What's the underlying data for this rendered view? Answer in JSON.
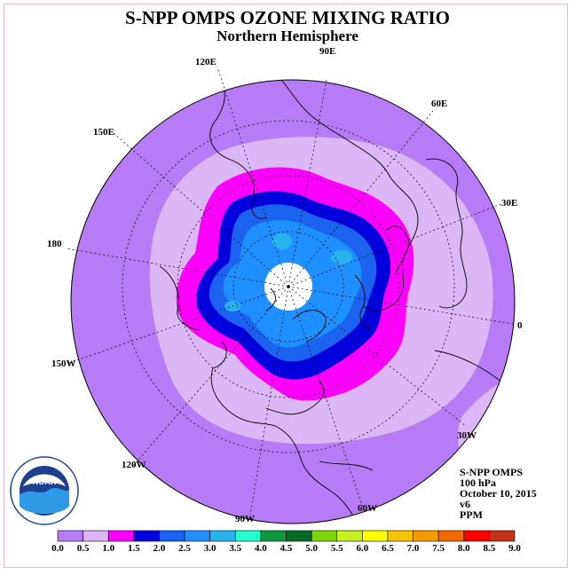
{
  "title": "S-NPP OMPS OZONE MIXING RATIO",
  "subtitle": "Northern Hemisphere",
  "longitude_labels": [
    "90E",
    "60E",
    "30E",
    "0",
    "30W",
    "60W",
    "90W",
    "120W",
    "150W",
    "180",
    "150E",
    "120E"
  ],
  "info": {
    "instrument": "S-NPP OMPS",
    "level": "100 hPa",
    "date": "October 10, 2015",
    "version": "v6",
    "units": "PPM"
  },
  "logo": {
    "text": "NOAA",
    "ring_text": "NATIONAL OCEANIC AND ATMOSPHERIC ADMINISTRATION · U.S. DEPARTMENT OF COMMERCE"
  },
  "colorbar": {
    "ticks": [
      "0.0",
      "0.5",
      "1.0",
      "1.5",
      "2.0",
      "2.5",
      "3.0",
      "3.5",
      "4.0",
      "4.5",
      "5.0",
      "5.5",
      "6.0",
      "6.5",
      "7.0",
      "7.5",
      "8.0",
      "8.5",
      "9.0"
    ],
    "colors": [
      "#b77cf5",
      "#dcb6f5",
      "#ff00ff",
      "#0000dd",
      "#1b62f0",
      "#1e90ff",
      "#27b3f0",
      "#22ffcc",
      "#0d9a3f",
      "#066a29",
      "#7fd60e",
      "#c8f020",
      "#ffff00",
      "#f5c400",
      "#f59b00",
      "#f56a00",
      "#ff0000",
      "#c2331a"
    ]
  },
  "map_colors": {
    "background": "#b77cf5",
    "band_05": "#dcb6f5",
    "band_10": "#ff00ff",
    "band_15": "#0000dd",
    "band_20": "#1b62f0",
    "band_25": "#1e90ff",
    "band_30": "#27b3f0",
    "no_data_cap": "#ffffff"
  }
}
